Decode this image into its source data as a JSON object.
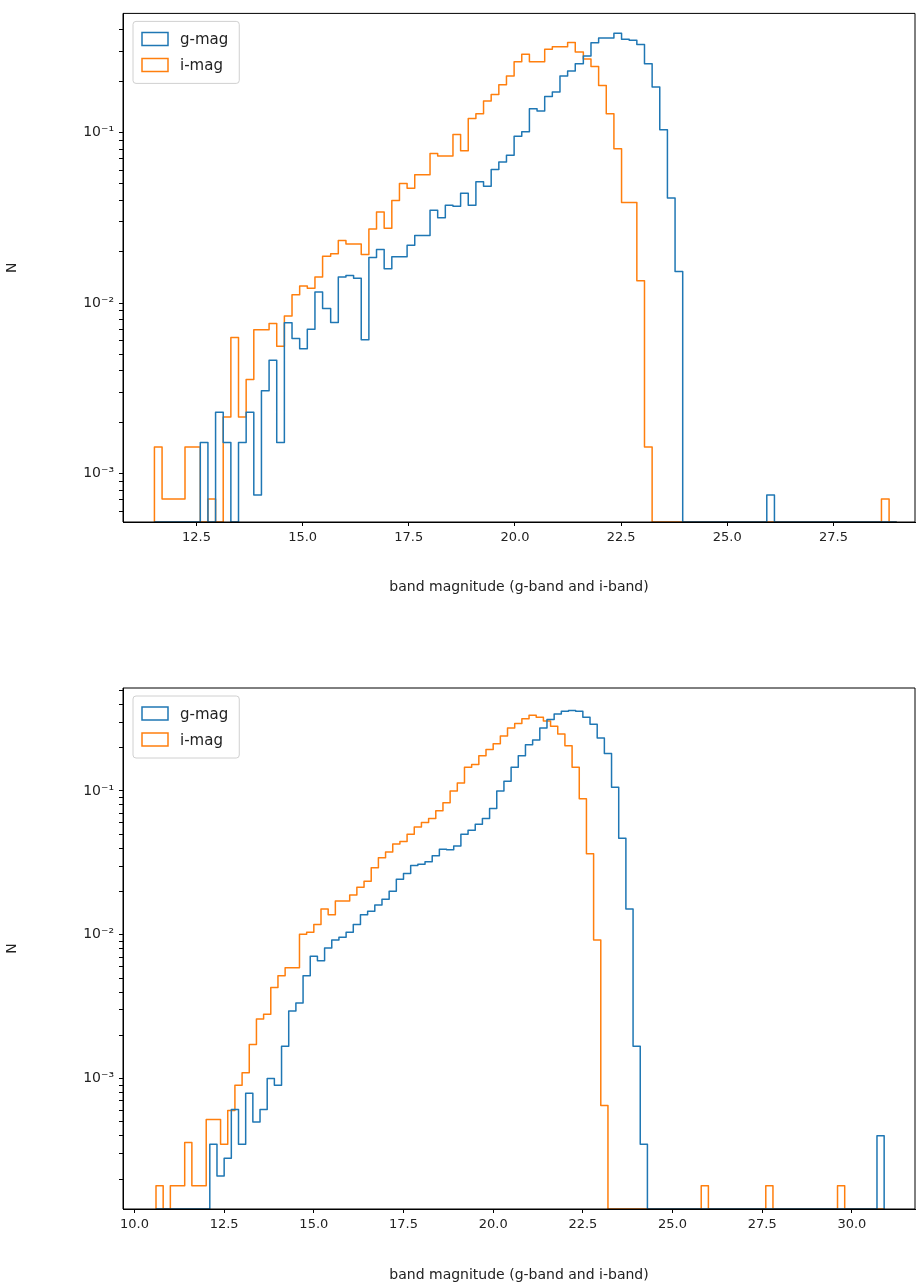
{
  "chart_data": [
    {
      "type": "histogram",
      "xlabel": "band magnitude (g-band and i-band)",
      "ylabel": "N",
      "log": "y",
      "grid": false,
      "legend": "top left",
      "xlim": [
        10.77,
        29.42
      ],
      "xticks": [
        {
          "value": 12.5,
          "label": "12.5"
        },
        {
          "value": 15,
          "label": "15.0"
        },
        {
          "value": 17.5,
          "label": "17.5"
        },
        {
          "value": 20,
          "label": "20.0"
        },
        {
          "value": 22.5,
          "label": "22.5"
        },
        {
          "value": 25,
          "label": "25.0"
        },
        {
          "value": 27.5,
          "label": "27.5"
        }
      ],
      "ylim": [
        0.00052,
        0.5
      ],
      "yticks": [
        {
          "value": 0.0006,
          "label": null
        },
        {
          "value": 0.0007,
          "label": null
        },
        {
          "value": 0.0008,
          "label": null
        },
        {
          "value": 0.0009,
          "label": null
        },
        {
          "value": 0.001,
          "label": "10⁻³"
        },
        {
          "value": 0.002,
          "label": null
        },
        {
          "value": 0.003,
          "label": null
        },
        {
          "value": 0.004,
          "label": null
        },
        {
          "value": 0.005,
          "label": null
        },
        {
          "value": 0.006,
          "label": null
        },
        {
          "value": 0.007,
          "label": null
        },
        {
          "value": 0.008,
          "label": null
        },
        {
          "value": 0.009,
          "label": null
        },
        {
          "value": 0.01,
          "label": "10⁻²"
        },
        {
          "value": 0.02,
          "label": null
        },
        {
          "value": 0.03,
          "label": null
        },
        {
          "value": 0.04,
          "label": null
        },
        {
          "value": 0.05,
          "label": null
        },
        {
          "value": 0.06,
          "label": null
        },
        {
          "value": 0.07,
          "label": null
        },
        {
          "value": 0.08,
          "label": null
        },
        {
          "value": 0.09,
          "label": null
        },
        {
          "value": 0.1,
          "label": "10⁻¹"
        },
        {
          "value": 0.2,
          "label": null
        },
        {
          "value": 0.3,
          "label": null
        },
        {
          "value": 0.4,
          "label": null
        }
      ],
      "bins": [
        11.51,
        11.69,
        11.87,
        12.05,
        12.23,
        12.41,
        12.59,
        12.77,
        12.95,
        13.13,
        13.31,
        13.49,
        13.67,
        13.85,
        14.03,
        14.21,
        14.39,
        14.57,
        14.75,
        14.93,
        15.11,
        15.29,
        15.47,
        15.66,
        15.84,
        16.02,
        16.2,
        16.38,
        16.56,
        16.74,
        16.92,
        17.1,
        17.28,
        17.46,
        17.64,
        17.82,
        18.0,
        18.18,
        18.36,
        18.54,
        18.72,
        18.9,
        19.08,
        19.26,
        19.44,
        19.62,
        19.8,
        19.98,
        20.16,
        20.34,
        20.52,
        20.7,
        20.88,
        21.06,
        21.24,
        21.42,
        21.61,
        21.79,
        21.97,
        22.15,
        22.33,
        22.51,
        22.69,
        22.87,
        23.05,
        23.23,
        23.41,
        23.59,
        23.77,
        23.95,
        24.13,
        24.31,
        24.49,
        24.67,
        24.85,
        25.03,
        25.21,
        25.39,
        25.57,
        25.75,
        25.93,
        26.11,
        26.29,
        26.47,
        26.65,
        26.83,
        27.01,
        27.19,
        27.37,
        27.55,
        27.73,
        27.91,
        28.09,
        28.27,
        28.45,
        28.63,
        28.81,
        28.99
      ],
      "series": [
        {
          "name": "g-mag",
          "color": "#1f77b4",
          "values": [
            null,
            null,
            null,
            null,
            null,
            null,
            0.00152,
            null,
            0.00229,
            0.00152,
            null,
            0.00152,
            0.00229,
            0.00075,
            0.00306,
            0.00462,
            0.00152,
            0.00767,
            0.0062,
            0.0054,
            0.00703,
            0.0116,
            0.0093,
            0.0077,
            0.0142,
            0.0145,
            0.014,
            0.0061,
            0.0185,
            0.0206,
            0.0159,
            0.0187,
            0.0187,
            0.0218,
            0.0249,
            0.0249,
            0.035,
            0.0317,
            0.0375,
            0.037,
            0.0441,
            0.0375,
            0.0515,
            0.0484,
            0.0607,
            0.0671,
            0.0736,
            0.095,
            0.101,
            0.138,
            0.134,
            0.163,
            0.173,
            0.215,
            0.23,
            0.253,
            0.281,
            0.336,
            0.359,
            0.359,
            0.383,
            0.353,
            0.348,
            0.329,
            0.253,
            0.185,
            0.104,
            0.0413,
            0.0153,
            null,
            null,
            null,
            null,
            null,
            null,
            null,
            null,
            null,
            null,
            null,
            0.00075,
            null,
            null,
            null,
            null,
            null,
            null,
            null,
            null,
            null,
            null,
            null,
            null,
            null,
            null,
            null,
            null
          ]
        },
        {
          "name": "i-mag",
          "color": "#ff7f0e",
          "values": [
            0.00143,
            0.00071,
            0.00071,
            0.00071,
            0.00143,
            0.00143,
            null,
            0.00071,
            null,
            0.00215,
            0.00628,
            0.00215,
            0.00356,
            0.00697,
            0.00697,
            0.0076,
            0.00559,
            0.0084,
            0.0112,
            0.0126,
            0.0122,
            0.0142,
            0.0188,
            0.0195,
            0.0233,
            0.0222,
            0.0222,
            0.0193,
            0.0272,
            0.0342,
            0.0275,
            0.0399,
            0.0502,
            0.0472,
            0.0565,
            0.0565,
            0.0755,
            0.073,
            0.073,
            0.0975,
            0.0783,
            0.121,
            0.129,
            0.153,
            0.167,
            0.191,
            0.215,
            0.26,
            0.288,
            0.26,
            0.26,
            0.308,
            0.319,
            0.319,
            0.337,
            0.297,
            0.27,
            0.244,
            0.189,
            0.129,
            0.0803,
            0.0389,
            0.0389,
            0.0135,
            0.00143,
            null,
            null,
            null,
            null,
            null,
            null,
            null,
            null,
            null,
            null,
            null,
            null,
            null,
            null,
            null,
            null,
            null,
            null,
            null,
            null,
            null,
            null,
            null,
            null,
            null,
            null,
            null,
            null,
            null,
            null,
            0.00071,
            null
          ]
        }
      ]
    },
    {
      "type": "histogram",
      "xlabel": "band magnitude (g-band and i-band)",
      "ylabel": "N",
      "log": "y",
      "grid": false,
      "legend": "top left",
      "xlim": [
        9.68,
        31.76
      ],
      "xticks": [
        {
          "value": 10,
          "label": "10.0"
        },
        {
          "value": 12.5,
          "label": "12.5"
        },
        {
          "value": 15,
          "label": "15.0"
        },
        {
          "value": 17.5,
          "label": "17.5"
        },
        {
          "value": 20,
          "label": "20.0"
        },
        {
          "value": 22.5,
          "label": "22.5"
        },
        {
          "value": 25,
          "label": "25.0"
        },
        {
          "value": 27.5,
          "label": "27.5"
        },
        {
          "value": 30,
          "label": "30.0"
        }
      ],
      "ylim": [
        0.000124,
        0.52
      ],
      "yticks": [
        {
          "value": 0.0002,
          "label": null
        },
        {
          "value": 0.0003,
          "label": null
        },
        {
          "value": 0.0004,
          "label": null
        },
        {
          "value": 0.0005,
          "label": null
        },
        {
          "value": 0.0006,
          "label": null
        },
        {
          "value": 0.0007,
          "label": null
        },
        {
          "value": 0.0008,
          "label": null
        },
        {
          "value": 0.0009,
          "label": null
        },
        {
          "value": 0.001,
          "label": "10⁻³"
        },
        {
          "value": 0.002,
          "label": null
        },
        {
          "value": 0.003,
          "label": null
        },
        {
          "value": 0.004,
          "label": null
        },
        {
          "value": 0.005,
          "label": null
        },
        {
          "value": 0.006,
          "label": null
        },
        {
          "value": 0.007,
          "label": null
        },
        {
          "value": 0.008,
          "label": null
        },
        {
          "value": 0.009,
          "label": null
        },
        {
          "value": 0.01,
          "label": "10⁻²"
        },
        {
          "value": 0.02,
          "label": null
        },
        {
          "value": 0.03,
          "label": null
        },
        {
          "value": 0.04,
          "label": null
        },
        {
          "value": 0.05,
          "label": null
        },
        {
          "value": 0.06,
          "label": null
        },
        {
          "value": 0.07,
          "label": null
        },
        {
          "value": 0.08,
          "label": null
        },
        {
          "value": 0.09,
          "label": null
        },
        {
          "value": 0.1,
          "label": "10⁻¹"
        },
        {
          "value": 0.2,
          "label": null
        },
        {
          "value": 0.3,
          "label": null
        },
        {
          "value": 0.4,
          "label": null
        },
        {
          "value": 0.5,
          "label": null
        }
      ],
      "bins": [
        10.6,
        10.7,
        10.8,
        10.9,
        11.0,
        11.1,
        11.2,
        11.3,
        11.4,
        11.5,
        11.6,
        11.7,
        11.8,
        11.9,
        12.0,
        12.1,
        12.2,
        12.3,
        12.4,
        12.5,
        12.6,
        12.7,
        12.8,
        12.9,
        13.0,
        13.1,
        13.2,
        13.3,
        13.4,
        13.5,
        13.6,
        13.7,
        13.8,
        13.9,
        14.0,
        14.1,
        14.2,
        14.3,
        14.4,
        14.5,
        14.6,
        14.7,
        14.8,
        14.9,
        15.0,
        15.1,
        15.2,
        15.3,
        15.4,
        15.5,
        15.6,
        15.7,
        15.8,
        15.9,
        16.0,
        16.1,
        16.2,
        16.3,
        16.4,
        16.5,
        16.6,
        16.7,
        16.8,
        16.9,
        17.0,
        17.1,
        17.2,
        17.3,
        17.4,
        17.5,
        17.6,
        17.7,
        17.8,
        17.9,
        18.0,
        18.1,
        18.2,
        18.3,
        18.4,
        18.5,
        18.6,
        18.7,
        18.8,
        18.9,
        19.0,
        19.1,
        19.2,
        19.3,
        19.4,
        19.5,
        19.6,
        19.7,
        19.8,
        19.9,
        20.0,
        20.1,
        20.2,
        20.3,
        20.4,
        20.5,
        20.6,
        20.7,
        20.8,
        20.9,
        21.0,
        21.1,
        21.2,
        21.3,
        21.4,
        21.5,
        21.6,
        21.7,
        21.8,
        21.9,
        22.0,
        22.1,
        22.2,
        22.3,
        22.4,
        22.5,
        22.6,
        22.7,
        22.8,
        22.9,
        23.0,
        23.1,
        23.2,
        23.3,
        23.4,
        23.5,
        23.6,
        23.7,
        23.8,
        23.9,
        24.0,
        24.1,
        24.2,
        24.3,
        25.8,
        26.0,
        27.6,
        27.8,
        29.6,
        29.8,
        30.7,
        30.9
      ],
      "series": [
        {
          "name": "g-mag",
          "color": "#1f77b4",
          "values": [
            null,
            null,
            null,
            null,
            null,
            null,
            null,
            null,
            null,
            null,
            null,
            null,
            null,
            null,
            null,
            0.00035,
            0.00035,
            0.00021,
            0.00021,
            0.00028,
            0.00028,
            0.00061,
            0.00061,
            0.00035,
            0.00035,
            0.00079,
            0.00079,
            0.0005,
            0.0005,
            0.00061,
            0.00061,
            0.001,
            0.001,
            0.0009,
            0.0009,
            0.00168,
            0.00168,
            0.00295,
            0.00295,
            0.00335,
            0.00335,
            0.0052,
            0.0052,
            0.0071,
            0.0071,
            0.0066,
            0.0066,
            0.0081,
            0.0081,
            0.0092,
            0.0092,
            0.0096,
            0.0096,
            0.0104,
            0.0104,
            0.0118,
            0.0118,
            0.0138,
            0.0138,
            0.0146,
            0.0146,
            0.0161,
            0.0161,
            0.0177,
            0.0177,
            0.0201,
            0.0201,
            0.0243,
            0.0243,
            0.0267,
            0.0267,
            0.0303,
            0.0303,
            0.031,
            0.031,
            0.0322,
            0.0322,
            0.0354,
            0.0354,
            0.0394,
            0.0394,
            0.039,
            0.039,
            0.0414,
            0.0414,
            0.05,
            0.05,
            0.0533,
            0.0533,
            0.0586,
            0.0586,
            0.0644,
            0.0644,
            0.0754,
            0.0754,
            0.1,
            0.1,
            0.117,
            0.117,
            0.146,
            0.146,
            0.176,
            0.176,
            0.21,
            0.21,
            0.226,
            0.226,
            0.274,
            0.274,
            0.314,
            0.314,
            0.343,
            0.343,
            0.359,
            0.359,
            0.362,
            0.362,
            0.359,
            0.359,
            0.326,
            0.326,
            0.291,
            0.291,
            0.234,
            0.234,
            0.182,
            0.182,
            0.106,
            0.106,
            0.047,
            0.047,
            0.0151,
            0.0151,
            0.00168,
            0.00168,
            0.00035,
            0.00035,
            null,
            null,
            null,
            null,
            null,
            null,
            null,
            0.0004
          ]
        },
        {
          "name": "i-mag",
          "color": "#ff7f0e",
          "values": [
            0.00018,
            0.00018,
            null,
            null,
            0.00018,
            0.00018,
            0.00018,
            0.00018,
            0.00036,
            0.00036,
            0.00018,
            0.00018,
            0.00018,
            0.00018,
            0.00052,
            0.00052,
            0.00052,
            0.00052,
            0.00035,
            0.00035,
            0.0006,
            0.0006,
            0.0009,
            0.0009,
            0.0011,
            0.0011,
            0.00173,
            0.00173,
            0.0026,
            0.0026,
            0.0028,
            0.0028,
            0.0043,
            0.0043,
            0.0052,
            0.0052,
            0.0059,
            0.0059,
            0.0059,
            0.0059,
            0.0101,
            0.0101,
            0.0104,
            0.0104,
            0.0118,
            0.0118,
            0.0151,
            0.0151,
            0.0138,
            0.0138,
            0.0172,
            0.0172,
            0.0172,
            0.0172,
            0.0189,
            0.0189,
            0.0214,
            0.0214,
            0.0236,
            0.0236,
            0.0293,
            0.0293,
            0.0343,
            0.0343,
            0.0377,
            0.0377,
            0.0428,
            0.0428,
            0.0445,
            0.0445,
            0.05,
            0.05,
            0.0561,
            0.0561,
            0.0604,
            0.0604,
            0.0644,
            0.0644,
            0.073,
            0.073,
            0.0828,
            0.0828,
            0.1,
            0.1,
            0.1135,
            0.1135,
            0.146,
            0.146,
            0.153,
            0.153,
            0.176,
            0.176,
            0.194,
            0.194,
            0.213,
            0.213,
            0.241,
            0.241,
            0.274,
            0.274,
            0.295,
            0.295,
            0.318,
            0.318,
            0.336,
            0.336,
            0.326,
            0.326,
            0.306,
            0.306,
            0.282,
            0.282,
            0.249,
            0.249,
            0.206,
            0.206,
            0.146,
            0.146,
            0.0882,
            0.0882,
            0.0366,
            0.0366,
            0.0092,
            0.0092,
            0.00065,
            0.00065,
            null,
            null,
            null,
            null,
            null,
            null,
            null,
            null,
            null,
            null,
            null,
            null,
            0.00018,
            null,
            0.00018,
            null,
            0.00018,
            null,
            null
          ]
        }
      ]
    }
  ]
}
